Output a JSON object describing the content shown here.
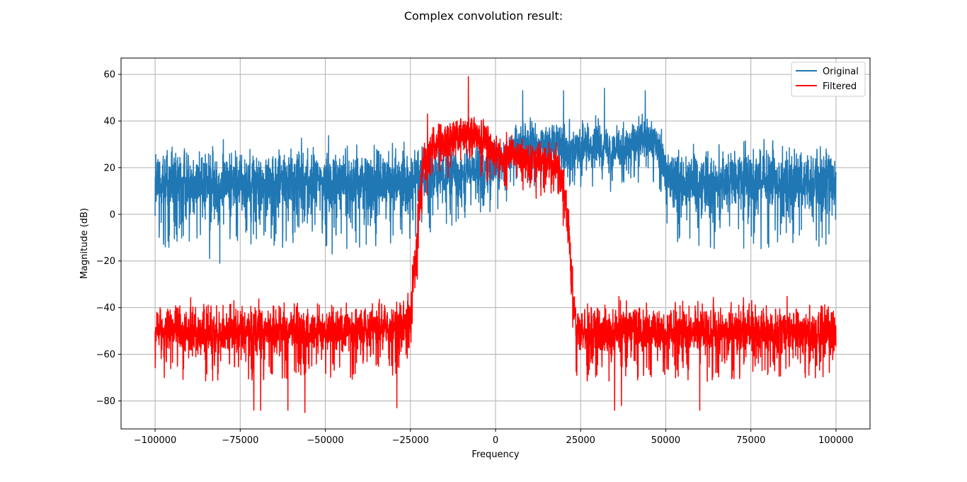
{
  "chart_data": {
    "type": "line",
    "title": "Complex convolution result:",
    "xlabel": "Frequency",
    "ylabel": "Magnitude (dB)",
    "xlim": [
      -110000,
      110000
    ],
    "ylim": [
      -92,
      67
    ],
    "xticks": [
      -100000,
      -75000,
      -50000,
      -25000,
      0,
      25000,
      50000,
      75000,
      100000
    ],
    "xtick_labels": [
      "−100000",
      "−75000",
      "−50000",
      "−25000",
      "0",
      "25000",
      "50000",
      "75000",
      "100000"
    ],
    "yticks": [
      60,
      40,
      20,
      0,
      -20,
      -40,
      -60,
      -80
    ],
    "ytick_labels": [
      "60",
      "40",
      "20",
      "0",
      "−20",
      "−40",
      "−60",
      "−80"
    ],
    "grid": true,
    "legend_position": "upper right",
    "x_range": [
      -100000,
      100000
    ],
    "series": [
      {
        "name": "Original",
        "color": "#1f77b4",
        "envelope": [
          [
            -100000,
            14,
            12
          ],
          [
            -80000,
            14,
            12
          ],
          [
            -60000,
            14,
            12
          ],
          [
            -40000,
            14,
            12
          ],
          [
            -25000,
            15,
            11
          ],
          [
            -20000,
            16,
            10
          ],
          [
            -10000,
            18,
            9
          ],
          [
            0,
            20,
            9
          ],
          [
            4000,
            26,
            8
          ],
          [
            8000,
            32,
            7
          ],
          [
            12000,
            29,
            8
          ],
          [
            20000,
            30,
            8
          ],
          [
            25000,
            27,
            8
          ],
          [
            30000,
            31,
            8
          ],
          [
            35000,
            28,
            8
          ],
          [
            40000,
            29,
            8
          ],
          [
            44000,
            33,
            7
          ],
          [
            48000,
            29,
            8
          ],
          [
            50000,
            18,
            10
          ],
          [
            52000,
            15,
            11
          ],
          [
            60000,
            14,
            12
          ],
          [
            80000,
            14,
            12
          ],
          [
            100000,
            14,
            12
          ]
        ],
        "spikes": [
          [
            8000,
            53
          ],
          [
            20000,
            53
          ],
          [
            32000,
            54
          ],
          [
            44000,
            53
          ],
          [
            -84000,
            -19
          ],
          [
            -81000,
            -21
          ],
          [
            -48000,
            -17
          ],
          [
            -97000,
            -14
          ]
        ]
      },
      {
        "name": "Filtered",
        "color": "#ff0000",
        "envelope": [
          [
            -100000,
            -50,
            9
          ],
          [
            -50000,
            -50,
            9
          ],
          [
            -30000,
            -48,
            9
          ],
          [
            -25000,
            -44,
            9
          ],
          [
            -24000,
            -25,
            9
          ],
          [
            -23000,
            -8,
            9
          ],
          [
            -22000,
            12,
            9
          ],
          [
            -21000,
            24,
            8
          ],
          [
            -18000,
            30,
            8
          ],
          [
            -12000,
            33,
            7
          ],
          [
            -8000,
            36,
            7
          ],
          [
            -4000,
            33,
            7
          ],
          [
            0,
            26,
            7
          ],
          [
            10000,
            24,
            7
          ],
          [
            16000,
            22,
            7
          ],
          [
            19000,
            18,
            8
          ],
          [
            20000,
            12,
            9
          ],
          [
            21000,
            0,
            9
          ],
          [
            22000,
            -20,
            9
          ],
          [
            23000,
            -40,
            9
          ],
          [
            24000,
            -50,
            9
          ],
          [
            100000,
            -50,
            9
          ]
        ],
        "spikes": [
          [
            -8000,
            59
          ],
          [
            -20000,
            43
          ],
          [
            -71000,
            -84
          ],
          [
            -69000,
            -84
          ],
          [
            -61000,
            -84
          ],
          [
            -56000,
            -85
          ],
          [
            -29000,
            -83
          ],
          [
            35000,
            -84
          ],
          [
            37000,
            -82
          ],
          [
            60000,
            -84
          ]
        ]
      }
    ]
  }
}
